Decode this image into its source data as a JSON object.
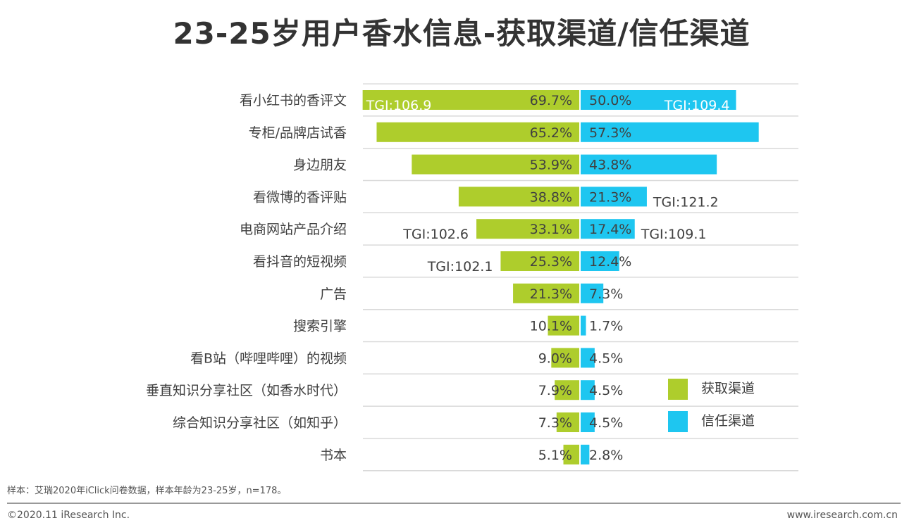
{
  "title": "23-25岁用户香水信息-获取渠道/信任渠道",
  "chart_data": {
    "type": "bar",
    "orientation": "horizontal-diverging",
    "categories": [
      "看小红书的香评文",
      "专柜/品牌店试香",
      "身边朋友",
      "看微博的香评贴",
      "电商网站产品介绍",
      "看抖音的短视频",
      "广告",
      "搜索引擎",
      "看B站（哔哩哔哩）的视频",
      "垂直知识分享社区（如香水时代）",
      "综合知识分享社区（如知乎）",
      "书本"
    ],
    "series": [
      {
        "name": "获取渠道",
        "color": "#aecd2c",
        "side": "left",
        "values": [
          69.7,
          65.2,
          53.9,
          38.8,
          33.1,
          25.3,
          21.3,
          10.1,
          9.0,
          7.9,
          7.3,
          5.1
        ],
        "labels": [
          "69.7%",
          "65.2%",
          "53.9%",
          "38.8%",
          "33.1%",
          "25.3%",
          "21.3%",
          "10.1%",
          "9.0%",
          "7.9%",
          "7.3%",
          "5.1%"
        ]
      },
      {
        "name": "信任渠道",
        "color": "#1ec6f0",
        "side": "right",
        "values": [
          50.0,
          57.3,
          43.8,
          21.3,
          17.4,
          12.4,
          7.3,
          1.7,
          4.5,
          4.5,
          4.5,
          2.8
        ],
        "labels": [
          "50.0%",
          "57.3%",
          "43.8%",
          "21.3%",
          "17.4%",
          "12.4%",
          "7.3%",
          "1.7%",
          "4.5%",
          "4.5%",
          "4.5%",
          "2.8%"
        ]
      }
    ],
    "annotations": [
      {
        "category": "看小红书的香评文",
        "series": "获取渠道",
        "text": "TGI:106.9"
      },
      {
        "category": "看小红书的香评文",
        "series": "信任渠道",
        "text": "TGI:109.4"
      },
      {
        "category": "看微博的香评贴",
        "series": "信任渠道",
        "text": "TGI:121.2"
      },
      {
        "category": "电商网站产品介绍",
        "series": "获取渠道",
        "text": "TGI:102.6"
      },
      {
        "category": "电商网站产品介绍",
        "series": "信任渠道",
        "text": "TGI:109.1"
      },
      {
        "category": "看抖音的短视频",
        "series": "获取渠道",
        "text": "TGI:102.1"
      }
    ],
    "legend": "right",
    "grid": true
  },
  "footer": {
    "note": "样本：艾瑞2020年iClick问卷数据，样本年龄为23-25岁，n=178。",
    "copyright": "©2020.11 iResearch Inc.",
    "website": "www.iresearch.com.cn"
  }
}
